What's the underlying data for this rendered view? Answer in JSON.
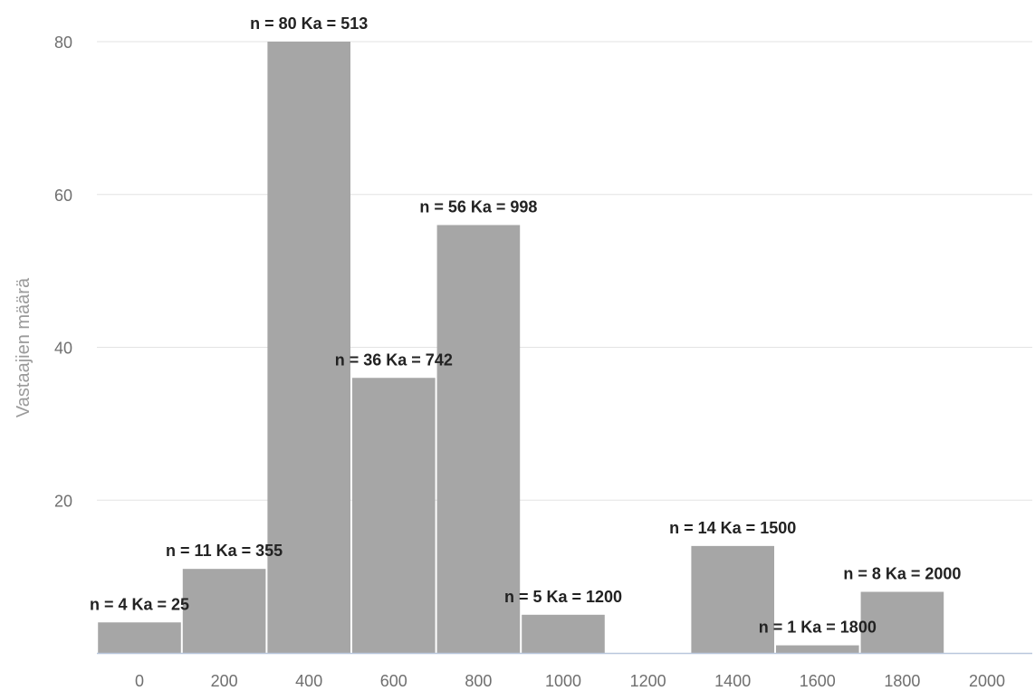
{
  "chart_data": {
    "type": "bar",
    "title": "",
    "xlabel": "",
    "ylabel": "Vastaajien määrä",
    "x_ticks": [
      0,
      200,
      400,
      600,
      800,
      1000,
      1200,
      1400,
      1600,
      1800,
      2000
    ],
    "y_ticks": [
      20,
      40,
      60,
      80
    ],
    "xlim": [
      -100,
      2100
    ],
    "ylim": [
      0,
      80
    ],
    "grid": true,
    "bar_color": "#a6a6a6",
    "bin_width": 200,
    "bars": [
      {
        "center": 0,
        "value": 4,
        "label": "n = 4 Ka = 25"
      },
      {
        "center": 200,
        "value": 11,
        "label": "n = 11 Ka = 355"
      },
      {
        "center": 400,
        "value": 80,
        "label": "n = 80 Ka = 513"
      },
      {
        "center": 600,
        "value": 36,
        "label": "n = 36 Ka = 742"
      },
      {
        "center": 800,
        "value": 56,
        "label": "n = 56 Ka = 998"
      },
      {
        "center": 1000,
        "value": 5,
        "label": "n = 5 Ka = 1200"
      },
      {
        "center": 1200,
        "value": 0,
        "label": ""
      },
      {
        "center": 1400,
        "value": 14,
        "label": "n = 14 Ka = 1500"
      },
      {
        "center": 1600,
        "value": 1,
        "label": "n = 1 Ka = 1800"
      },
      {
        "center": 1800,
        "value": 8,
        "label": "n = 8 Ka = 2000"
      },
      {
        "center": 2000,
        "value": 0,
        "label": ""
      }
    ]
  }
}
